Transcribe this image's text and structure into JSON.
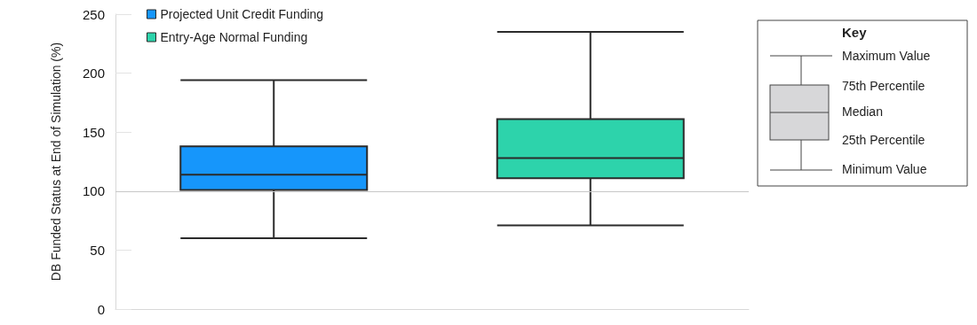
{
  "chart_data": {
    "type": "box",
    "ylabel": "DB Funded Status at End of Simulation (%)",
    "categories": [
      null,
      null
    ],
    "series": [
      {
        "name": "Projected Unit Credit Funding",
        "color": "#1696fb",
        "boxes": [
          {
            "low": 60,
            "q1": 101,
            "median": 114,
            "q3": 138,
            "high": 194
          },
          null
        ]
      },
      {
        "name": "Entry-Age Normal Funding",
        "color": "#2dd3ab",
        "boxes": [
          null,
          {
            "low": 71,
            "q1": 111,
            "median": 128,
            "q3": 161,
            "high": 235
          }
        ]
      }
    ],
    "ylim": [
      0,
      250
    ],
    "yticks": [
      0,
      50,
      100,
      150,
      200,
      250
    ],
    "grid": false,
    "legend": "top left",
    "ref_lines": [
      {
        "axis": "y",
        "value": 100,
        "color": "#c8c8c8"
      }
    ],
    "annotations": [
      "Key",
      "Maximum Value",
      "75th Percentile",
      "Median",
      "25th Percentile",
      "Minimum Value"
    ]
  }
}
